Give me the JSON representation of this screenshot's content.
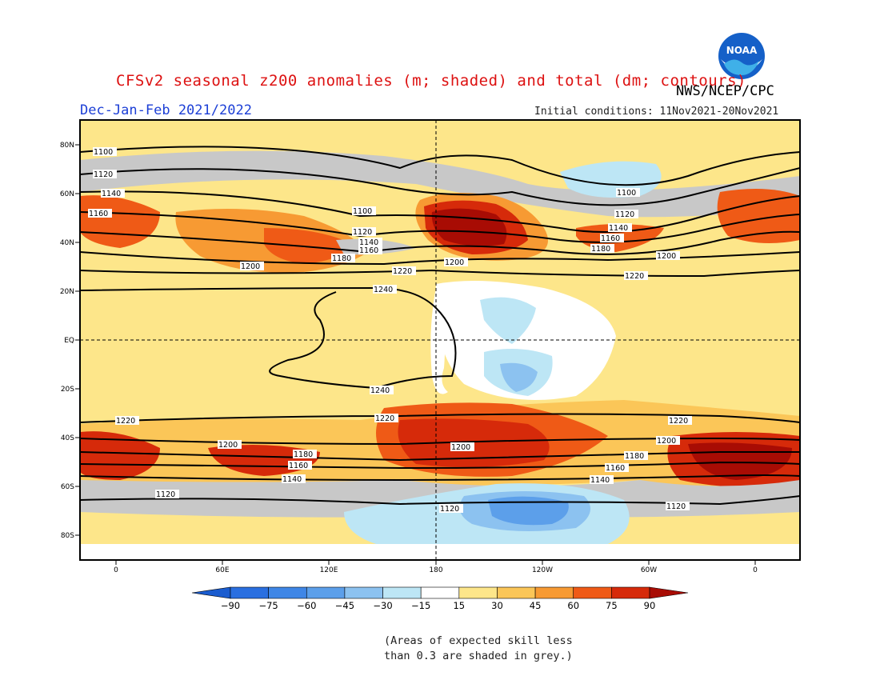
{
  "header": {
    "title": "CFSv2 seasonal z200 anomalies (m; shaded) and total (dm; contours)",
    "agency": "NWS/NCEP/CPC",
    "season": "Dec-Jan-Feb 2021/2022",
    "initial_conditions": "Initial conditions: 11Nov2021-20Nov2021",
    "logo_text": "NOAA"
  },
  "map": {
    "lat_labels": [
      "80N",
      "60N",
      "40N",
      "20N",
      "EQ",
      "20S",
      "40S",
      "60S",
      "80S"
    ],
    "lon_labels": [
      "0",
      "60E",
      "120E",
      "180",
      "120W",
      "60W",
      "0"
    ],
    "contour_labels": [
      "1100",
      "1120",
      "1140",
      "1160",
      "1180",
      "1200",
      "1220",
      "1240"
    ]
  },
  "colorbar": {
    "ticks": [
      "-90",
      "-75",
      "-60",
      "-45",
      "-30",
      "-15",
      "15",
      "30",
      "45",
      "60",
      "75",
      "90"
    ],
    "colors": [
      "#1a5ccf",
      "#2a6fe0",
      "#3f86e6",
      "#5c9fea",
      "#8cc2f0",
      "#bde6f5",
      "#ffffff",
      "#fde68a",
      "#fbc658",
      "#f79a33",
      "#ef5a16",
      "#d62a0a",
      "#a80c04"
    ]
  },
  "footnote": "(Areas of expected skill less\nthan 0.3 are shaded in grey.)"
}
